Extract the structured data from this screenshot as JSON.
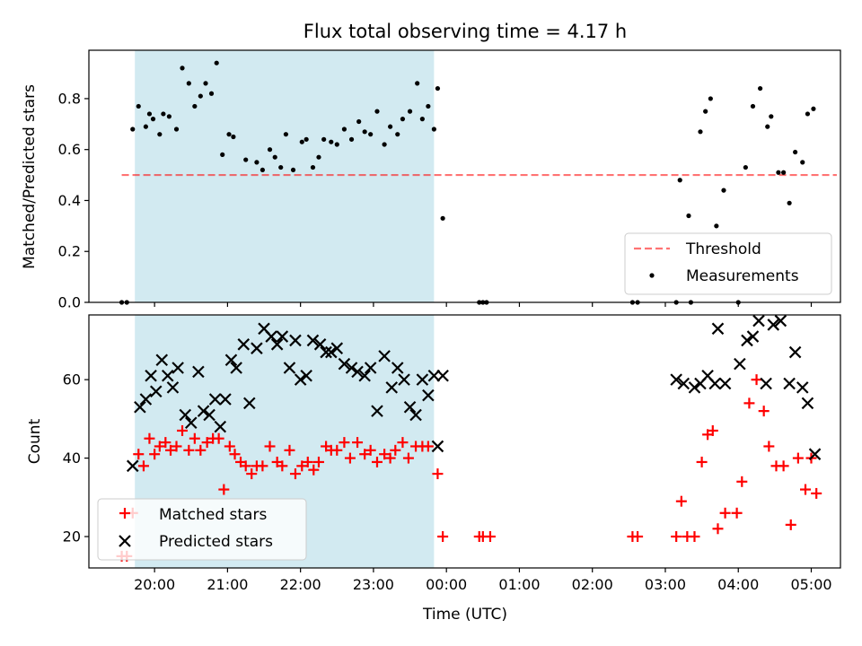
{
  "chart_data": {
    "type": "scatter",
    "title": "Flux total observing time = 4.17 h",
    "xlabel": "Time (UTC)",
    "x_tick_labels": [
      "20:00",
      "21:00",
      "22:00",
      "23:00",
      "00:00",
      "01:00",
      "02:00",
      "03:00",
      "04:00",
      "05:00"
    ],
    "xlim_hours": [
      19.1,
      29.4
    ],
    "shaded_region_hours": [
      19.73,
      23.83
    ],
    "colors": {
      "shade": "#add8e6",
      "threshold": "#ff0000",
      "measurements": "#000000",
      "matched": "#ff0000",
      "predicted": "#000000"
    },
    "top_panel": {
      "ylabel": "Matched/Predicted stars",
      "ylim": [
        0,
        0.99
      ],
      "y_ticks": [
        0.0,
        0.2,
        0.4,
        0.6,
        0.8
      ],
      "threshold": {
        "value": 0.5,
        "x_range": [
          19.55,
          29.35
        ]
      },
      "legend": {
        "placement": "lower right",
        "entries": [
          "Threshold",
          "Measurements"
        ]
      },
      "measurements": [
        [
          19.55,
          0.0
        ],
        [
          19.62,
          0.0
        ],
        [
          19.7,
          0.68
        ],
        [
          19.78,
          0.77
        ],
        [
          19.88,
          0.69
        ],
        [
          19.93,
          0.74
        ],
        [
          19.98,
          0.72
        ],
        [
          20.07,
          0.66
        ],
        [
          20.12,
          0.74
        ],
        [
          20.2,
          0.73
        ],
        [
          20.3,
          0.68
        ],
        [
          20.38,
          0.92
        ],
        [
          20.47,
          0.86
        ],
        [
          20.55,
          0.77
        ],
        [
          20.63,
          0.81
        ],
        [
          20.7,
          0.86
        ],
        [
          20.78,
          0.82
        ],
        [
          20.85,
          0.94
        ],
        [
          20.93,
          0.58
        ],
        [
          21.02,
          0.66
        ],
        [
          21.08,
          0.65
        ],
        [
          21.25,
          0.56
        ],
        [
          21.4,
          0.55
        ],
        [
          21.48,
          0.52
        ],
        [
          21.58,
          0.6
        ],
        [
          21.65,
          0.57
        ],
        [
          21.73,
          0.53
        ],
        [
          21.8,
          0.66
        ],
        [
          21.9,
          0.52
        ],
        [
          22.02,
          0.63
        ],
        [
          22.08,
          0.64
        ],
        [
          22.17,
          0.53
        ],
        [
          22.25,
          0.57
        ],
        [
          22.32,
          0.64
        ],
        [
          22.42,
          0.63
        ],
        [
          22.5,
          0.62
        ],
        [
          22.6,
          0.68
        ],
        [
          22.7,
          0.64
        ],
        [
          22.8,
          0.71
        ],
        [
          22.88,
          0.67
        ],
        [
          22.96,
          0.66
        ],
        [
          23.05,
          0.75
        ],
        [
          23.15,
          0.62
        ],
        [
          23.23,
          0.69
        ],
        [
          23.33,
          0.66
        ],
        [
          23.4,
          0.72
        ],
        [
          23.5,
          0.75
        ],
        [
          23.6,
          0.86
        ],
        [
          23.67,
          0.72
        ],
        [
          23.75,
          0.77
        ],
        [
          23.83,
          0.68
        ],
        [
          23.88,
          0.84
        ],
        [
          23.95,
          0.33
        ],
        [
          24.45,
          0.0
        ],
        [
          24.5,
          0.0
        ],
        [
          24.55,
          0.0
        ],
        [
          26.55,
          0.0
        ],
        [
          26.62,
          0.0
        ],
        [
          27.15,
          0.0
        ],
        [
          27.2,
          0.48
        ],
        [
          27.32,
          0.34
        ],
        [
          27.35,
          0.0
        ],
        [
          27.48,
          0.67
        ],
        [
          27.55,
          0.75
        ],
        [
          27.62,
          0.8
        ],
        [
          27.7,
          0.3
        ],
        [
          27.8,
          0.44
        ],
        [
          28.0,
          0.0
        ],
        [
          28.1,
          0.53
        ],
        [
          28.2,
          0.77
        ],
        [
          28.3,
          0.84
        ],
        [
          28.4,
          0.69
        ],
        [
          28.45,
          0.73
        ],
        [
          28.55,
          0.51
        ],
        [
          28.62,
          0.51
        ],
        [
          28.7,
          0.39
        ],
        [
          28.78,
          0.59
        ],
        [
          28.88,
          0.55
        ],
        [
          28.95,
          0.74
        ],
        [
          29.03,
          0.76
        ]
      ]
    },
    "bottom_panel": {
      "ylabel": "Count",
      "ylim": [
        12,
        76.5
      ],
      "y_ticks": [
        20,
        40,
        60
      ],
      "legend": {
        "placement": "lower left",
        "entries": [
          "Matched stars",
          "Predicted stars"
        ]
      },
      "matched_stars": [
        [
          19.55,
          15
        ],
        [
          19.62,
          15
        ],
        [
          19.7,
          26
        ],
        [
          19.78,
          41
        ],
        [
          19.85,
          38
        ],
        [
          19.93,
          45
        ],
        [
          20.0,
          41
        ],
        [
          20.07,
          43
        ],
        [
          20.15,
          44
        ],
        [
          20.22,
          42
        ],
        [
          20.3,
          43
        ],
        [
          20.38,
          47
        ],
        [
          20.47,
          42
        ],
        [
          20.55,
          45
        ],
        [
          20.63,
          42
        ],
        [
          20.72,
          44
        ],
        [
          20.8,
          45
        ],
        [
          20.88,
          45
        ],
        [
          20.95,
          32
        ],
        [
          21.03,
          43
        ],
        [
          21.1,
          41
        ],
        [
          21.18,
          39
        ],
        [
          21.25,
          38
        ],
        [
          21.33,
          36
        ],
        [
          21.4,
          38
        ],
        [
          21.48,
          38
        ],
        [
          21.58,
          43
        ],
        [
          21.68,
          39
        ],
        [
          21.75,
          38
        ],
        [
          21.85,
          42
        ],
        [
          21.93,
          36
        ],
        [
          22.02,
          38
        ],
        [
          22.1,
          39
        ],
        [
          22.18,
          37
        ],
        [
          22.25,
          39
        ],
        [
          22.35,
          43
        ],
        [
          22.42,
          42
        ],
        [
          22.5,
          42
        ],
        [
          22.6,
          44
        ],
        [
          22.68,
          40
        ],
        [
          22.78,
          44
        ],
        [
          22.88,
          41
        ],
        [
          22.96,
          42
        ],
        [
          23.05,
          39
        ],
        [
          23.15,
          41
        ],
        [
          23.23,
          40
        ],
        [
          23.3,
          42
        ],
        [
          23.4,
          44
        ],
        [
          23.48,
          40
        ],
        [
          23.58,
          43
        ],
        [
          23.67,
          43
        ],
        [
          23.75,
          43
        ],
        [
          23.88,
          36
        ],
        [
          23.95,
          20
        ],
        [
          24.45,
          20
        ],
        [
          24.5,
          20
        ],
        [
          24.6,
          20
        ],
        [
          26.55,
          20
        ],
        [
          26.62,
          20
        ],
        [
          27.15,
          20
        ],
        [
          27.22,
          29
        ],
        [
          27.3,
          20
        ],
        [
          27.4,
          20
        ],
        [
          27.5,
          39
        ],
        [
          27.58,
          46
        ],
        [
          27.65,
          47
        ],
        [
          27.72,
          22
        ],
        [
          27.82,
          26
        ],
        [
          27.98,
          26
        ],
        [
          28.05,
          34
        ],
        [
          28.15,
          54
        ],
        [
          28.25,
          60
        ],
        [
          28.35,
          52
        ],
        [
          28.42,
          43
        ],
        [
          28.52,
          38
        ],
        [
          28.62,
          38
        ],
        [
          28.72,
          23
        ],
        [
          28.82,
          40
        ],
        [
          28.92,
          32
        ],
        [
          29.0,
          40
        ],
        [
          29.07,
          31
        ]
      ],
      "predicted_stars": [
        [
          19.7,
          38
        ],
        [
          19.8,
          53
        ],
        [
          19.88,
          55
        ],
        [
          19.95,
          61
        ],
        [
          20.02,
          57
        ],
        [
          20.1,
          65
        ],
        [
          20.18,
          61
        ],
        [
          20.25,
          58
        ],
        [
          20.32,
          63
        ],
        [
          20.42,
          51
        ],
        [
          20.5,
          49
        ],
        [
          20.6,
          62
        ],
        [
          20.67,
          52
        ],
        [
          20.75,
          51
        ],
        [
          20.83,
          55
        ],
        [
          20.9,
          48
        ],
        [
          20.97,
          55
        ],
        [
          21.05,
          65
        ],
        [
          21.12,
          63
        ],
        [
          21.22,
          69
        ],
        [
          21.3,
          54
        ],
        [
          21.4,
          68
        ],
        [
          21.5,
          73
        ],
        [
          21.6,
          71
        ],
        [
          21.68,
          69
        ],
        [
          21.75,
          71
        ],
        [
          21.85,
          63
        ],
        [
          21.93,
          70
        ],
        [
          22.0,
          60
        ],
        [
          22.08,
          61
        ],
        [
          22.17,
          70
        ],
        [
          22.27,
          69
        ],
        [
          22.35,
          67
        ],
        [
          22.42,
          67
        ],
        [
          22.5,
          68
        ],
        [
          22.6,
          64
        ],
        [
          22.7,
          63
        ],
        [
          22.78,
          62
        ],
        [
          22.88,
          61
        ],
        [
          22.96,
          63
        ],
        [
          23.05,
          52
        ],
        [
          23.15,
          66
        ],
        [
          23.25,
          58
        ],
        [
          23.33,
          63
        ],
        [
          23.42,
          60
        ],
        [
          23.5,
          53
        ],
        [
          23.58,
          51
        ],
        [
          23.67,
          60
        ],
        [
          23.75,
          56
        ],
        [
          23.83,
          61
        ],
        [
          23.88,
          43
        ],
        [
          23.95,
          61
        ],
        [
          27.15,
          60
        ],
        [
          27.25,
          59
        ],
        [
          27.4,
          58
        ],
        [
          27.48,
          59
        ],
        [
          27.58,
          61
        ],
        [
          27.68,
          59
        ],
        [
          27.72,
          73
        ],
        [
          27.82,
          59
        ],
        [
          28.02,
          64
        ],
        [
          28.12,
          70
        ],
        [
          28.2,
          71
        ],
        [
          28.28,
          75
        ],
        [
          28.38,
          59
        ],
        [
          28.48,
          74
        ],
        [
          28.58,
          75
        ],
        [
          28.7,
          59
        ],
        [
          28.78,
          67
        ],
        [
          28.88,
          58
        ],
        [
          28.95,
          54
        ],
        [
          29.05,
          41
        ]
      ]
    }
  }
}
